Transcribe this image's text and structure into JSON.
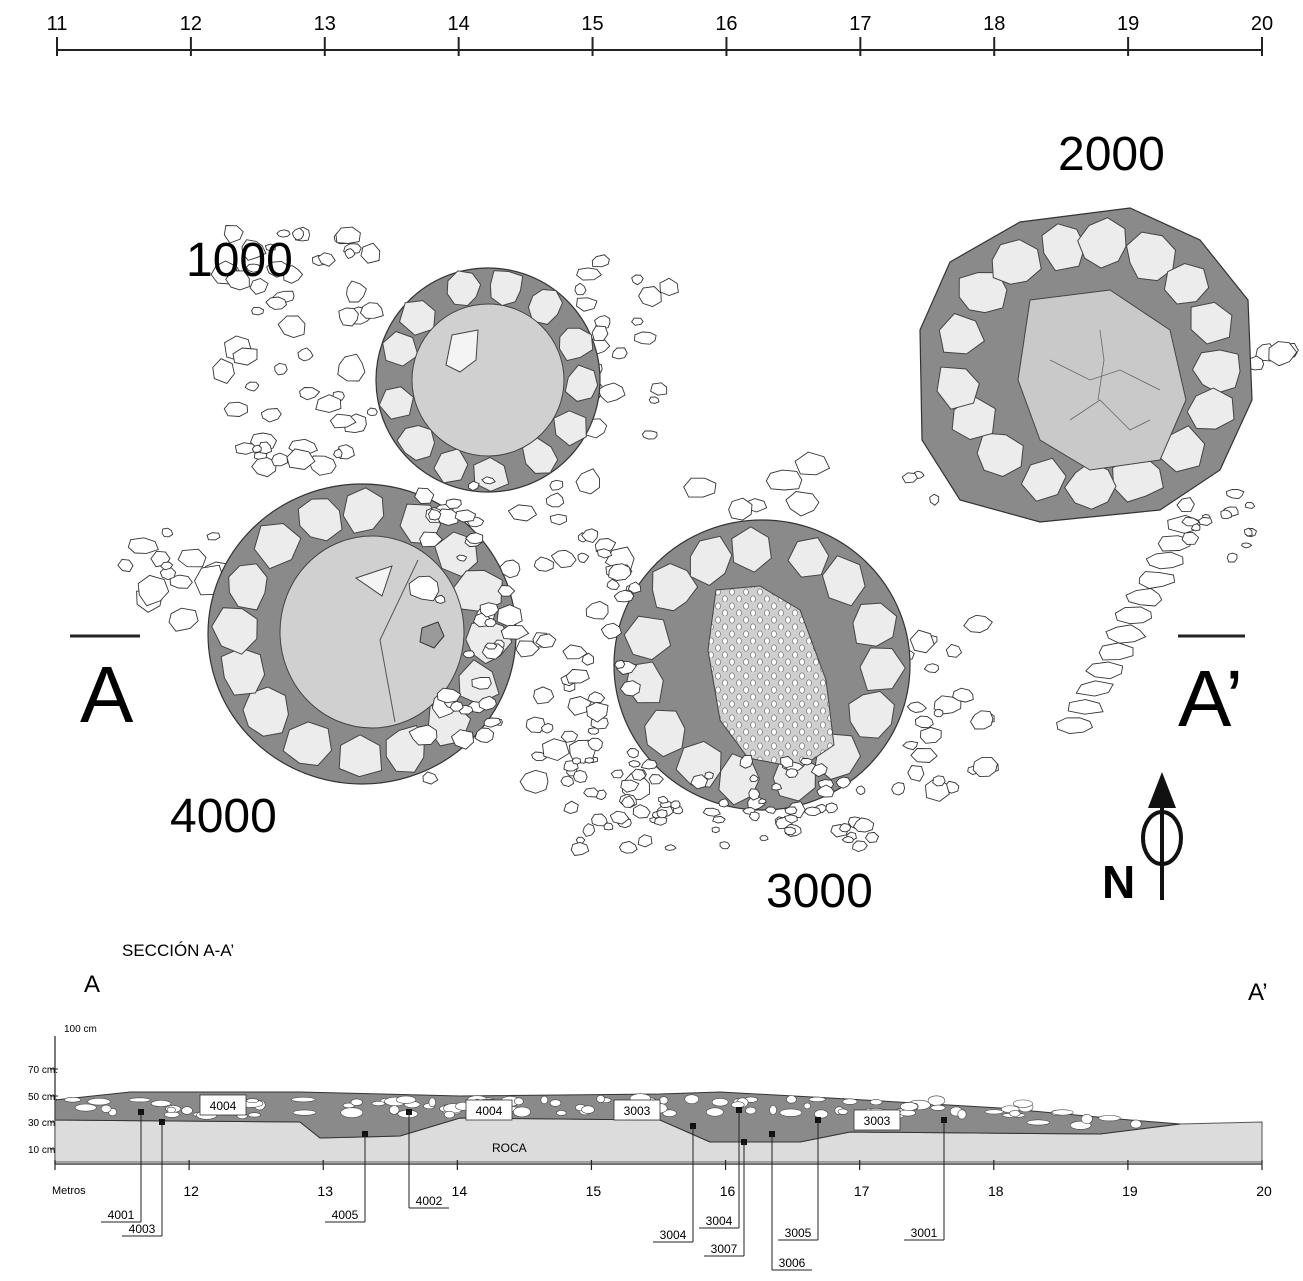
{
  "plan": {
    "ruler_ticks": [
      "11",
      "12",
      "13",
      "14",
      "15",
      "16",
      "17",
      "18",
      "19",
      "20"
    ],
    "structures": [
      {
        "label": "1000"
      },
      {
        "label": "2000"
      },
      {
        "label": "3000"
      },
      {
        "label": "4000"
      }
    ],
    "section_marker_left": "A",
    "section_marker_right": "A’",
    "north_label": "N"
  },
  "section": {
    "title": "SECCIÓN A-A’",
    "end_left": "A",
    "end_right": "A’",
    "y_labels": [
      "100 cm",
      "70 cm.",
      "50 cm.",
      "30 cm.",
      "10 cm."
    ],
    "x_axis_label": "Metros",
    "x_ticks": [
      "12",
      "13",
      "14",
      "15",
      "16",
      "17",
      "18",
      "19",
      "20"
    ],
    "layer_boxes": [
      "4004",
      "4004",
      "3003",
      "3003"
    ],
    "rock_label": "ROCA",
    "callouts": [
      "4001",
      "4003",
      "4005",
      "4002",
      "3004",
      "3004",
      "3007",
      "3006",
      "3005",
      "3001"
    ],
    "colors": {
      "fill_dark": "#8a8a8a",
      "fill_light": "#d0d0d0",
      "stone": "#ececec",
      "rock": "#dcdcdc"
    }
  }
}
